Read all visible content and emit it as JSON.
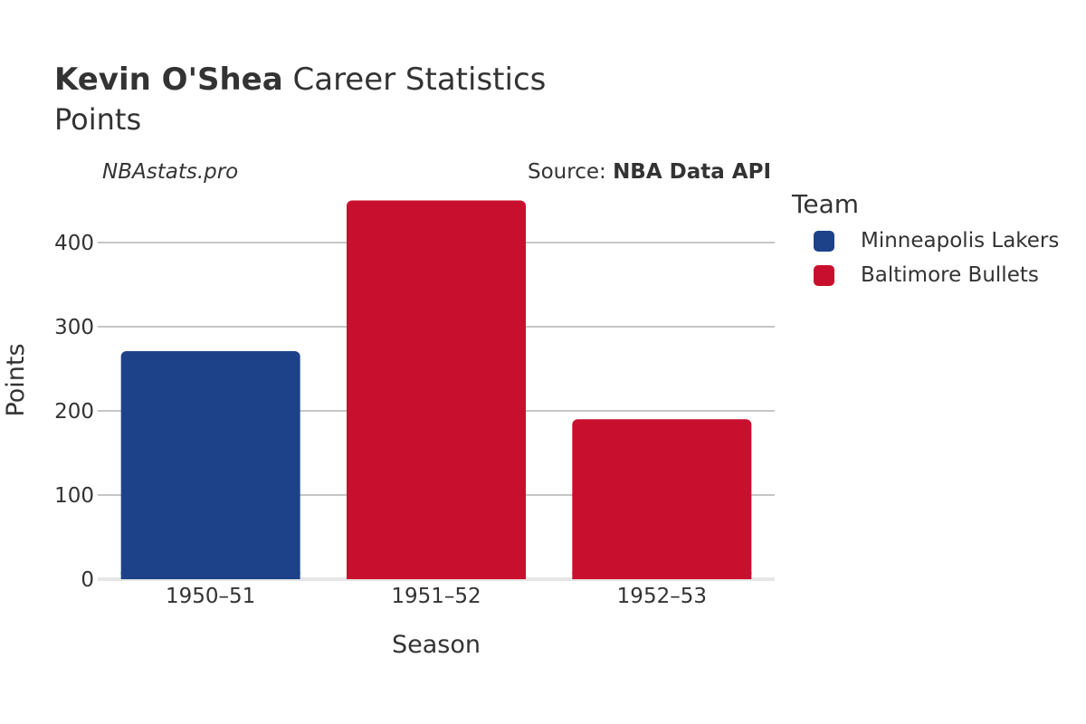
{
  "header": {
    "title_bold": "Kevin O'Shea",
    "title_rest": "Career Statistics",
    "subtitle": "Points",
    "watermark": "NBAstats.pro",
    "source_label": "Source:",
    "source_name": "NBA Data API"
  },
  "legend": {
    "title": "Team",
    "items": [
      {
        "label": "Minneapolis Lakers",
        "color": "#1d428a"
      },
      {
        "label": "Baltimore Bullets",
        "color": "#c8102e"
      }
    ]
  },
  "chart_data": {
    "type": "bar",
    "title": "Kevin O'Shea Career Statistics",
    "subtitle": "Points",
    "xlabel": "Season",
    "ylabel": "Points",
    "categories": [
      "1950–51",
      "1951–52",
      "1952–53"
    ],
    "values": [
      271,
      450,
      190
    ],
    "teams": [
      "Minneapolis Lakers",
      "Baltimore Bullets",
      "Baltimore Bullets"
    ],
    "colors": [
      "#1d428a",
      "#c8102e",
      "#c8102e"
    ],
    "ylim": [
      0,
      450
    ],
    "yticks": [
      0,
      100,
      200,
      300,
      400
    ],
    "grid": true,
    "legend_position": "right"
  }
}
